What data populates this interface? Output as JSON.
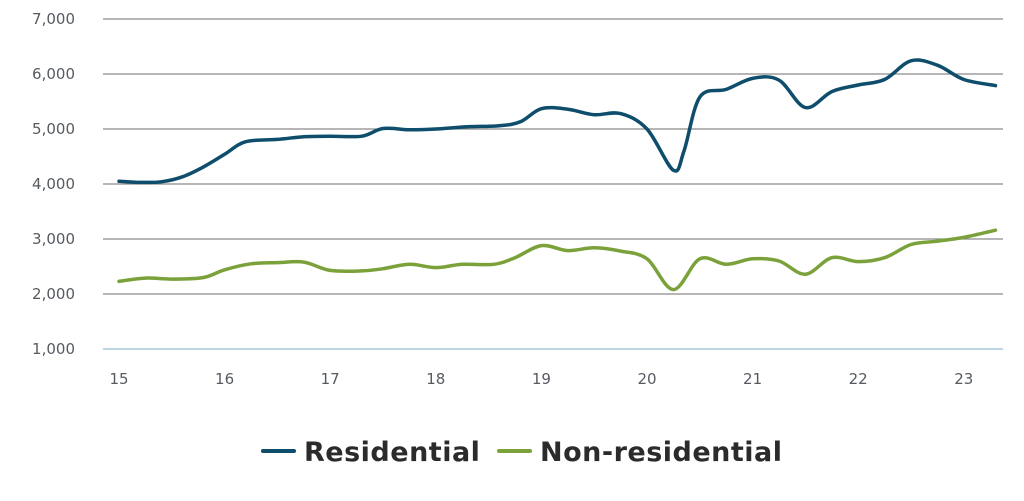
{
  "chart_data": {
    "type": "line",
    "title": "",
    "xlabel": "",
    "ylabel": "",
    "xlim": [
      15,
      23.3
    ],
    "ylim": [
      1000,
      7000
    ],
    "grid": true,
    "legend_placement": "bottom-center",
    "x_ticks": [
      15,
      16,
      17,
      18,
      19,
      20,
      21,
      22,
      23
    ],
    "y_ticks": [
      1000,
      2000,
      3000,
      4000,
      5000,
      6000,
      7000
    ],
    "x_tick_labels": [
      "15",
      "16",
      "17",
      "18",
      "19",
      "20",
      "21",
      "22",
      "23"
    ],
    "y_tick_labels": [
      "1,000",
      "2,000",
      "3,000",
      "4,000",
      "5,000",
      "6,000",
      "7,000"
    ],
    "series": [
      {
        "name": "Residential",
        "color": "#0e4d6b",
        "points": [
          [
            15.0,
            4050
          ],
          [
            15.2,
            4030
          ],
          [
            15.4,
            4040
          ],
          [
            15.6,
            4130
          ],
          [
            15.8,
            4310
          ],
          [
            16.0,
            4540
          ],
          [
            16.2,
            4770
          ],
          [
            16.5,
            4810
          ],
          [
            16.75,
            4860
          ],
          [
            17.0,
            4870
          ],
          [
            17.3,
            4870
          ],
          [
            17.5,
            5010
          ],
          [
            17.75,
            4985
          ],
          [
            18.0,
            5000
          ],
          [
            18.3,
            5040
          ],
          [
            18.6,
            5060
          ],
          [
            18.8,
            5130
          ],
          [
            19.0,
            5370
          ],
          [
            19.25,
            5360
          ],
          [
            19.5,
            5260
          ],
          [
            19.75,
            5280
          ],
          [
            20.0,
            5000
          ],
          [
            20.25,
            4250
          ],
          [
            20.35,
            4600
          ],
          [
            20.5,
            5580
          ],
          [
            20.75,
            5720
          ],
          [
            21.0,
            5920
          ],
          [
            21.25,
            5890
          ],
          [
            21.5,
            5390
          ],
          [
            21.75,
            5680
          ],
          [
            22.0,
            5800
          ],
          [
            22.25,
            5900
          ],
          [
            22.5,
            6240
          ],
          [
            22.75,
            6160
          ],
          [
            23.0,
            5900
          ],
          [
            23.3,
            5790
          ]
        ]
      },
      {
        "name": "Non-residential",
        "color": "#7ba23a",
        "points": [
          [
            15.0,
            2230
          ],
          [
            15.25,
            2290
          ],
          [
            15.5,
            2270
          ],
          [
            15.8,
            2300
          ],
          [
            16.0,
            2440
          ],
          [
            16.25,
            2550
          ],
          [
            16.5,
            2570
          ],
          [
            16.75,
            2580
          ],
          [
            17.0,
            2430
          ],
          [
            17.3,
            2420
          ],
          [
            17.5,
            2460
          ],
          [
            17.75,
            2540
          ],
          [
            18.0,
            2480
          ],
          [
            18.25,
            2540
          ],
          [
            18.55,
            2540
          ],
          [
            18.75,
            2660
          ],
          [
            19.0,
            2880
          ],
          [
            19.25,
            2790
          ],
          [
            19.5,
            2840
          ],
          [
            19.75,
            2780
          ],
          [
            20.0,
            2640
          ],
          [
            20.25,
            2080
          ],
          [
            20.5,
            2640
          ],
          [
            20.75,
            2540
          ],
          [
            21.0,
            2640
          ],
          [
            21.25,
            2600
          ],
          [
            21.5,
            2360
          ],
          [
            21.75,
            2660
          ],
          [
            22.0,
            2590
          ],
          [
            22.25,
            2660
          ],
          [
            22.5,
            2900
          ],
          [
            22.75,
            2960
          ],
          [
            23.0,
            3030
          ],
          [
            23.3,
            3160
          ]
        ]
      }
    ]
  }
}
